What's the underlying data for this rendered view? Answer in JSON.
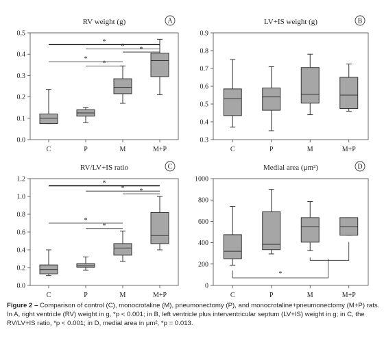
{
  "figure": {
    "caption_label": "Figure 2 –",
    "caption_text": " Comparison of control (C), monocrotaline (M), pneumonectomy (P), and monocrotaline+pneumonectomy (M+P) rats. In A, right ventricle (RV) weight in g, *p < 0.001; in B, left ventricle plus interventricular septum (LV+IS) weight in g; in C, the RV/LV+IS ratio, *p < 0.001; in D, medial area in μm², *p = 0.013."
  },
  "colors": {
    "box_fill": "#a6a6a6",
    "stroke": "#333333"
  },
  "chart_data": [
    {
      "type": "box",
      "panel": "A",
      "title": "RV weight (g)",
      "categories": [
        "C",
        "P",
        "M",
        "M+P"
      ],
      "yticks": [
        0,
        0.1,
        0.2,
        0.3,
        0.4,
        0.5
      ],
      "ytick_labels": [
        "0.0",
        "0.1",
        "0.2",
        "0.3",
        "0.4",
        "0.5"
      ],
      "ylim": [
        0,
        0.5
      ],
      "boxes": [
        {
          "min": 0.075,
          "q1": 0.075,
          "median": 0.1,
          "q3": 0.12,
          "max": 0.235
        },
        {
          "min": 0.08,
          "q1": 0.11,
          "median": 0.125,
          "q3": 0.14,
          "max": 0.15
        },
        {
          "min": 0.17,
          "q1": 0.215,
          "median": 0.245,
          "q3": 0.285,
          "max": 0.345
        },
        {
          "min": 0.21,
          "q1": 0.295,
          "median": 0.37,
          "q3": 0.405,
          "max": 0.47
        }
      ],
      "sig": [
        {
          "from": 0,
          "to": 3,
          "y": 0.445,
          "bold": true,
          "star": "*"
        },
        {
          "from": 1,
          "to": 3,
          "y": 0.425,
          "bold": false,
          "star": "*"
        },
        {
          "from": 2,
          "to": 3,
          "y": 0.41,
          "bold": false,
          "star": "*"
        },
        {
          "from": 0,
          "to": 2,
          "y": 0.365,
          "bold": false,
          "star": "*"
        },
        {
          "from": 1,
          "to": 2,
          "y": 0.345,
          "bold": false,
          "star": "*"
        }
      ]
    },
    {
      "type": "box",
      "panel": "B",
      "title": "LV+IS weight (g)",
      "categories": [
        "C",
        "P",
        "M",
        "M+P"
      ],
      "yticks": [
        0.3,
        0.4,
        0.5,
        0.6,
        0.7,
        0.8,
        0.9
      ],
      "ytick_labels": [
        "0.3",
        "0.4",
        "0.5",
        "0.6",
        "0.7",
        "0.8",
        "0.9"
      ],
      "ylim": [
        0.3,
        0.9
      ],
      "boxes": [
        {
          "min": 0.37,
          "q1": 0.435,
          "median": 0.53,
          "q3": 0.585,
          "max": 0.75
        },
        {
          "min": 0.35,
          "q1": 0.465,
          "median": 0.54,
          "q3": 0.59,
          "max": 0.71
        },
        {
          "min": 0.44,
          "q1": 0.505,
          "median": 0.555,
          "q3": 0.705,
          "max": 0.78
        },
        {
          "min": 0.46,
          "q1": 0.475,
          "median": 0.55,
          "q3": 0.65,
          "max": 0.725
        }
      ],
      "sig": []
    },
    {
      "type": "box",
      "panel": "C",
      "title": "RV/LV+IS ratio",
      "categories": [
        "C",
        "P",
        "M",
        "M+P"
      ],
      "yticks": [
        0,
        0.2,
        0.4,
        0.6,
        0.8,
        1.0,
        1.2
      ],
      "ytick_labels": [
        "0.0",
        "0.2",
        "0.4",
        "0.6",
        "0.8",
        "1.0",
        "1.2"
      ],
      "ylim": [
        0,
        1.2
      ],
      "boxes": [
        {
          "min": 0.11,
          "q1": 0.13,
          "median": 0.18,
          "q3": 0.23,
          "max": 0.4
        },
        {
          "min": 0.17,
          "q1": 0.205,
          "median": 0.22,
          "q3": 0.245,
          "max": 0.32
        },
        {
          "min": 0.27,
          "q1": 0.34,
          "median": 0.42,
          "q3": 0.47,
          "max": 0.61
        },
        {
          "min": 0.4,
          "q1": 0.47,
          "median": 0.56,
          "q3": 0.82,
          "max": 1.0
        }
      ],
      "sig": [
        {
          "from": 0,
          "to": 3,
          "y": 1.12,
          "bold": true,
          "star": "*"
        },
        {
          "from": 1,
          "to": 3,
          "y": 1.06,
          "bold": false,
          "star": "*"
        },
        {
          "from": 2,
          "to": 3,
          "y": 1.03,
          "bold": false,
          "star": "*"
        },
        {
          "from": 0,
          "to": 2,
          "y": 0.7,
          "bold": false,
          "star": "*"
        },
        {
          "from": 1,
          "to": 2,
          "y": 0.64,
          "bold": false,
          "star": "*"
        }
      ]
    },
    {
      "type": "box",
      "panel": "D",
      "title": "Medial area (μm²)",
      "categories": [
        "C",
        "P",
        "M",
        "M+P"
      ],
      "yticks": [
        0,
        200,
        400,
        600,
        800,
        1000
      ],
      "ytick_labels": [
        "0",
        "200",
        "400",
        "600",
        "800",
        "1000"
      ],
      "ylim": [
        0,
        1000
      ],
      "boxes": [
        {
          "min": 190,
          "q1": 250,
          "median": 320,
          "q3": 475,
          "max": 740
        },
        {
          "min": 295,
          "q1": 335,
          "median": 385,
          "q3": 690,
          "max": 900
        },
        {
          "min": 325,
          "q1": 405,
          "median": 550,
          "q3": 635,
          "max": 785
        },
        {
          "min": 470,
          "q1": 470,
          "median": 550,
          "q3": 635,
          "max": 635
        }
      ],
      "sig_bracket": {
        "star": "*"
      }
    }
  ]
}
